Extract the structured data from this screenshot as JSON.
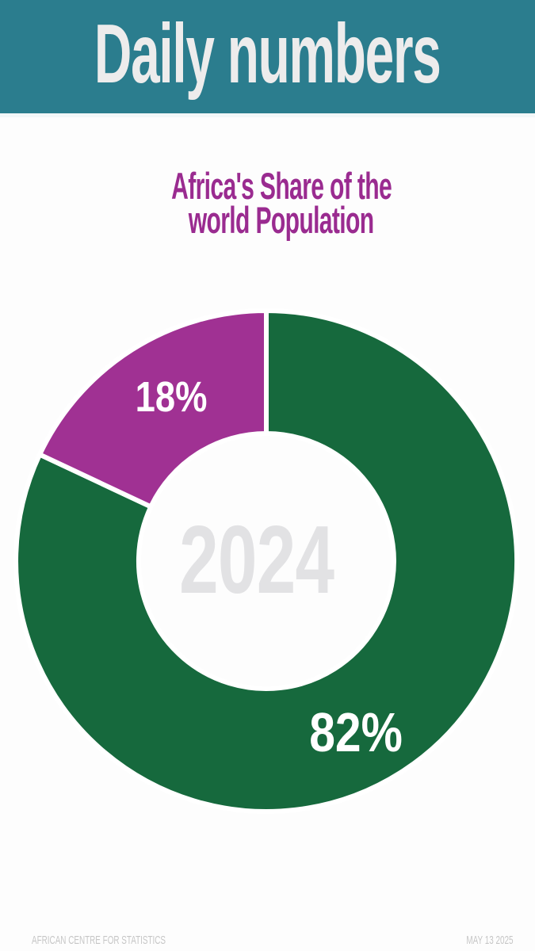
{
  "banner": {
    "title": "Daily numbers",
    "bg_color": "#2b7d8e",
    "text_color": "#edecec"
  },
  "chart_data": {
    "type": "pie",
    "donut": true,
    "title": "Africa's Share of the world Population",
    "title_lines": [
      "Africa's Share of the",
      "world Population"
    ],
    "title_color": "#9a2b90",
    "center_label": "2024",
    "center_label_color": "#e2e2e4",
    "start_angle_deg": 0,
    "direction": "clockwise",
    "divider_color": "#ffffff",
    "label_color": "#ffffff",
    "slices": [
      {
        "label": "82%",
        "value": 82,
        "color": "#16693d"
      },
      {
        "label": "18%",
        "value": 18,
        "color": "#a03193"
      }
    ],
    "legend": "none"
  },
  "footer": {
    "source": "AFRICAN CENTRE FOR STATISTICS",
    "date": "MAY 13 2025",
    "text_color": "#c6c6c6"
  }
}
